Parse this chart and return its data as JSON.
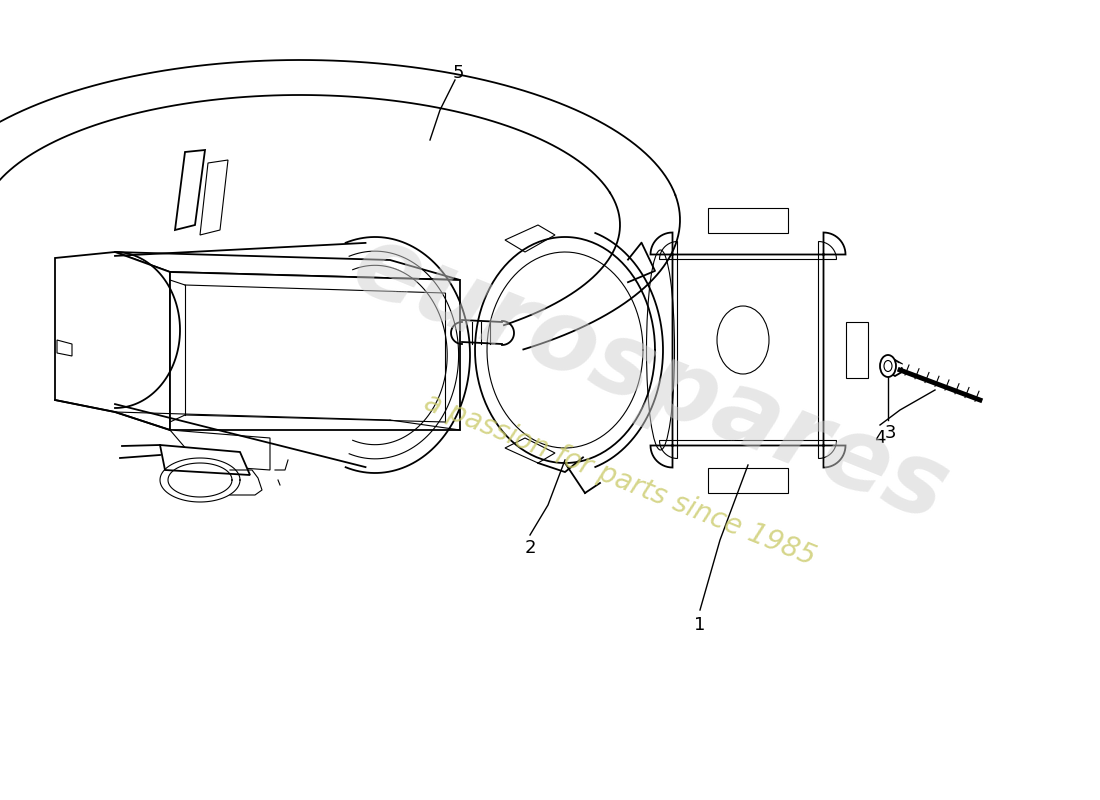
{
  "background_color": "#ffffff",
  "line_color": "#000000",
  "watermark_text1": "eurospares",
  "watermark_text2": "a passion for parts since 1985",
  "watermark_color1": "#cccccc",
  "watermark_color2": "#c8c864",
  "label_fontsize": 13,
  "figsize": [
    11.0,
    8.0
  ],
  "dpi": 100,
  "xlim": [
    0,
    1100
  ],
  "ylim": [
    0,
    800
  ]
}
